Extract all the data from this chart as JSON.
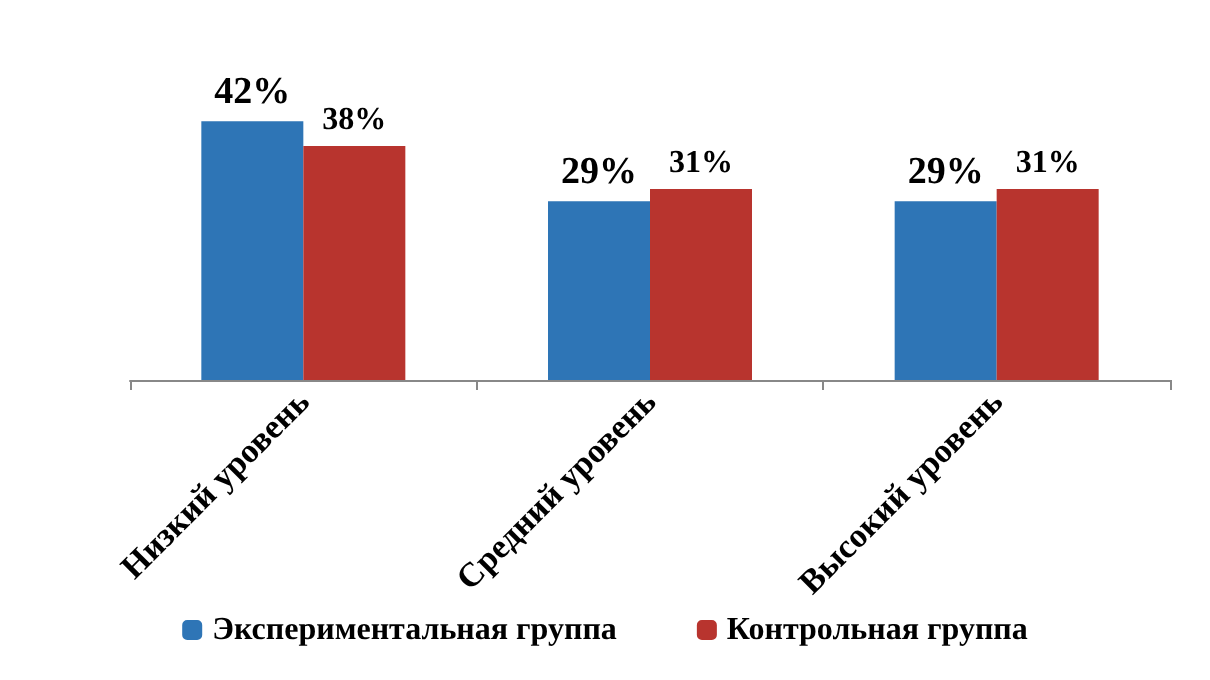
{
  "chart_data": {
    "type": "bar",
    "categories": [
      "Низкий уровень",
      "Средний уровень",
      "Высокий уровень"
    ],
    "series": [
      {
        "name": "Экспериментальная группа",
        "color": "#2e75b6",
        "values": [
          42,
          29,
          29
        ],
        "value_labels": [
          "42%",
          "29%",
          "29%"
        ]
      },
      {
        "name": "Контрольная группа",
        "color": "#b8342e",
        "values": [
          38,
          31,
          31
        ],
        "value_labels": [
          "38%",
          "31%",
          "31%"
        ]
      }
    ],
    "legend": "bottom",
    "grid": false
  }
}
